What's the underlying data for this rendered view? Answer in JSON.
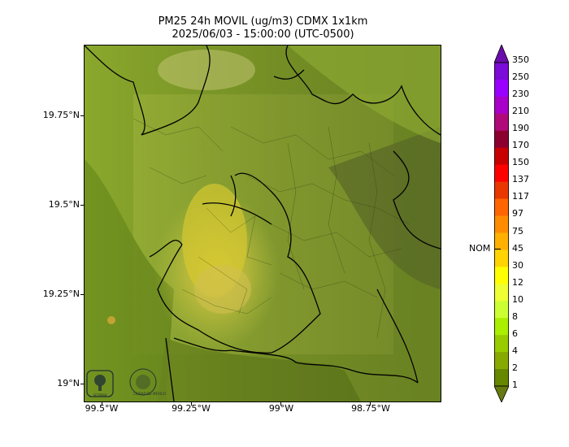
{
  "title": {
    "line1": "PM25 24h MOVIL (ug/m3) CDMX 1x1km",
    "line2": "2025/06/03 - 15:00:00 (UTC-0500)"
  },
  "map": {
    "y_ticks": [
      "19.75°N",
      "19.5°N",
      "19.25°N",
      "19°N"
    ],
    "x_ticks": [
      "99.5°W",
      "99.25°W",
      "99°W",
      "98.75°W"
    ],
    "logos": [
      {
        "name": "sedema-logo",
        "caption": "SEDEMA"
      },
      {
        "name": "gobierno-logo",
        "caption": "CIUDAD DE MÉXICO"
      }
    ]
  },
  "colorbar": {
    "labels": [
      "350",
      "250",
      "230",
      "210",
      "190",
      "170",
      "150",
      "137",
      "117",
      "97",
      "75",
      "45",
      "30",
      "12",
      "10",
      "8",
      "6",
      "4",
      "2",
      "1"
    ],
    "reference_label": "NOM",
    "colors": [
      "#7b0bd6",
      "#9a00ff",
      "#a800c8",
      "#b00a7a",
      "#8c0030",
      "#c80000",
      "#ff0000",
      "#e83800",
      "#ff6600",
      "#ff8c00",
      "#ffb000",
      "#ffd400",
      "#ffff00",
      "#eeff33",
      "#ccff33",
      "#aaee00",
      "#99cc00",
      "#88aa00",
      "#668800"
    ]
  }
}
